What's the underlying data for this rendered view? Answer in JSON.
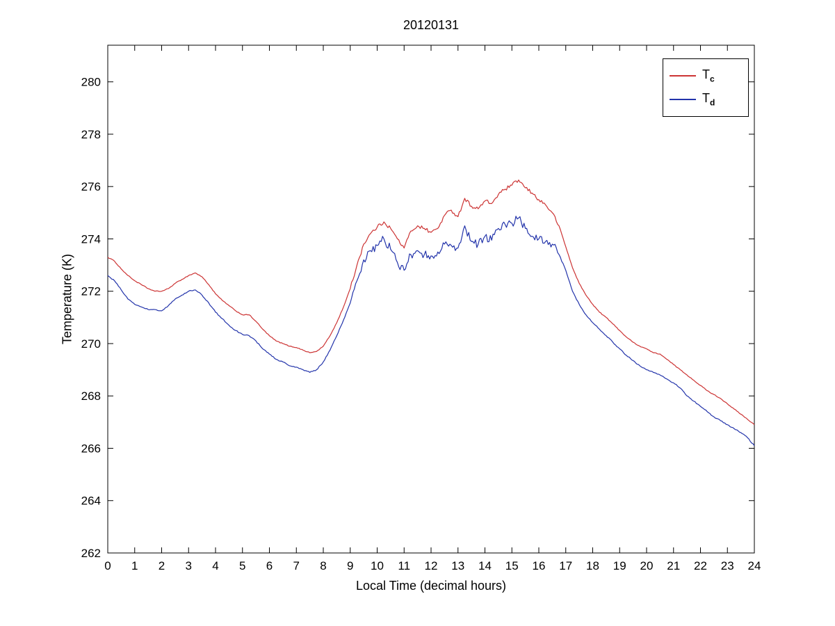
{
  "chart_data": {
    "type": "line",
    "title": "20120131",
    "xlabel": "Local Time (decimal hours)",
    "ylabel": "Temperature (K)",
    "xlim": [
      0,
      24
    ],
    "ylim": [
      262,
      281.4
    ],
    "xticks": [
      0,
      1,
      2,
      3,
      4,
      5,
      6,
      7,
      8,
      9,
      10,
      11,
      12,
      13,
      14,
      15,
      16,
      17,
      18,
      19,
      20,
      21,
      22,
      23,
      24
    ],
    "yticks": [
      262,
      264,
      266,
      268,
      270,
      272,
      274,
      276,
      278,
      280
    ],
    "grid": false,
    "axis_color": "#000000",
    "legend": {
      "position": "top-right",
      "entries": [
        {
          "main": "T",
          "sub": "c",
          "color": "#cc3333"
        },
        {
          "main": "T",
          "sub": "d",
          "color": "#2233aa"
        }
      ]
    },
    "x": [
      0,
      0.25,
      0.5,
      0.75,
      1,
      1.25,
      1.5,
      1.75,
      2,
      2.25,
      2.5,
      2.75,
      3,
      3.25,
      3.5,
      3.75,
      4,
      4.25,
      4.5,
      4.75,
      5,
      5.25,
      5.5,
      5.75,
      6,
      6.25,
      6.5,
      6.75,
      7,
      7.25,
      7.5,
      7.75,
      8,
      8.25,
      8.5,
      8.75,
      9,
      9.25,
      9.5,
      9.75,
      10,
      10.25,
      10.5,
      10.75,
      11,
      11.25,
      11.5,
      11.75,
      12,
      12.25,
      12.5,
      12.75,
      13,
      13.25,
      13.5,
      13.75,
      14,
      14.25,
      14.5,
      14.75,
      15,
      15.25,
      15.5,
      15.75,
      16,
      16.25,
      16.5,
      16.75,
      17,
      17.25,
      17.5,
      17.75,
      18,
      18.25,
      18.5,
      18.75,
      19,
      19.25,
      19.5,
      19.75,
      20,
      20.25,
      20.5,
      20.75,
      21,
      21.25,
      21.5,
      21.75,
      22,
      22.25,
      22.5,
      22.75,
      23,
      23.25,
      23.5,
      23.75,
      24
    ],
    "series": [
      {
        "name": "Tc",
        "color": "#cc3333",
        "noise": {
          "start": 9.0,
          "end": 16.75,
          "amplitude": 0.07,
          "base": 0.015
        },
        "values": [
          273.3,
          273.15,
          272.85,
          272.6,
          272.4,
          272.25,
          272.1,
          272.0,
          272.0,
          272.1,
          272.3,
          272.45,
          272.6,
          272.7,
          272.55,
          272.25,
          271.9,
          271.65,
          271.45,
          271.25,
          271.1,
          271.1,
          270.85,
          270.55,
          270.3,
          270.1,
          270.0,
          269.9,
          269.85,
          269.75,
          269.65,
          269.7,
          269.9,
          270.3,
          270.8,
          271.4,
          272.1,
          273.0,
          273.8,
          274.2,
          274.45,
          274.65,
          274.4,
          274.0,
          273.65,
          274.3,
          274.5,
          274.4,
          274.25,
          274.4,
          274.9,
          275.1,
          274.85,
          275.55,
          275.25,
          275.15,
          275.45,
          275.35,
          275.7,
          275.9,
          276.05,
          276.25,
          275.95,
          275.75,
          275.5,
          275.3,
          275.0,
          274.5,
          273.7,
          272.9,
          272.3,
          271.85,
          271.5,
          271.2,
          271.0,
          270.75,
          270.5,
          270.25,
          270.05,
          269.9,
          269.8,
          269.65,
          269.6,
          269.4,
          269.2,
          269.0,
          268.8,
          268.6,
          268.4,
          268.2,
          268.05,
          267.9,
          267.7,
          267.5,
          267.3,
          267.1,
          266.9
        ]
      },
      {
        "name": "Td",
        "color": "#2233aa",
        "noise": {
          "start": 9.0,
          "end": 16.75,
          "amplitude": 0.16,
          "base": 0.02
        },
        "values": [
          272.6,
          272.4,
          272.05,
          271.7,
          271.5,
          271.4,
          271.3,
          271.3,
          271.25,
          271.45,
          271.7,
          271.85,
          272.0,
          272.05,
          271.85,
          271.55,
          271.2,
          270.95,
          270.7,
          270.5,
          270.35,
          270.3,
          270.1,
          269.8,
          269.6,
          269.4,
          269.3,
          269.15,
          269.1,
          269.0,
          268.9,
          269.0,
          269.3,
          269.75,
          270.3,
          270.9,
          271.55,
          272.4,
          273.2,
          273.55,
          273.75,
          274.0,
          273.6,
          273.1,
          272.8,
          273.4,
          273.55,
          273.4,
          273.35,
          273.5,
          273.8,
          273.75,
          273.65,
          274.5,
          273.9,
          273.8,
          274.1,
          273.95,
          274.4,
          274.55,
          274.6,
          274.8,
          274.4,
          274.1,
          274.0,
          273.9,
          273.8,
          273.4,
          272.8,
          272.0,
          271.5,
          271.1,
          270.8,
          270.55,
          270.3,
          270.05,
          269.8,
          269.55,
          269.35,
          269.15,
          269.0,
          268.9,
          268.8,
          268.65,
          268.5,
          268.3,
          268.0,
          267.8,
          267.6,
          267.4,
          267.2,
          267.05,
          266.9,
          266.75,
          266.6,
          266.4,
          266.1
        ]
      }
    ]
  }
}
